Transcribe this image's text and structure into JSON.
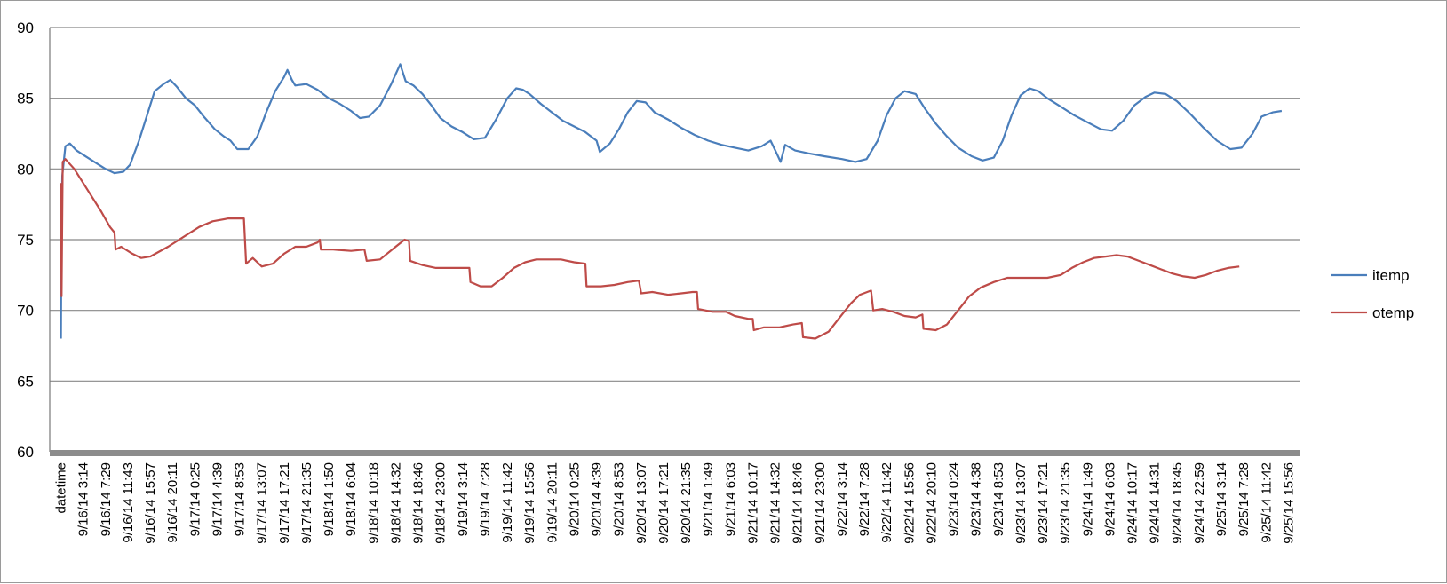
{
  "chart_data": {
    "type": "line",
    "title": "",
    "xlabel": "",
    "ylabel": "",
    "ylim": [
      60,
      90
    ],
    "yticks": [
      60,
      65,
      70,
      75,
      80,
      85,
      90
    ],
    "grid": "horizontal",
    "legend_position": "right",
    "categories": [
      "datetime",
      "9/16/14 3:14",
      "9/16/14 7:29",
      "9/16/14 11:43",
      "9/16/14 15:57",
      "9/16/14 20:11",
      "9/17/14 0:25",
      "9/17/14 4:39",
      "9/17/14 8:53",
      "9/17/14 13:07",
      "9/17/14 17:21",
      "9/17/14 21:35",
      "9/18/14 1:50",
      "9/18/14 6:04",
      "9/18/14 10:18",
      "9/18/14 14:32",
      "9/18/14 18:46",
      "9/18/14 23:00",
      "9/19/14 3:14",
      "9/19/14 7:28",
      "9/19/14 11:42",
      "9/19/14 15:56",
      "9/19/14 20:11",
      "9/20/14 0:25",
      "9/20/14 4:39",
      "9/20/14 8:53",
      "9/20/14 13:07",
      "9/20/14 17:21",
      "9/20/14 21:35",
      "9/21/14 1:49",
      "9/21/14 6:03",
      "9/21/14 10:17",
      "9/21/14 14:32",
      "9/21/14 18:46",
      "9/21/14 23:00",
      "9/22/14 3:14",
      "9/22/14 7:28",
      "9/22/14 11:42",
      "9/22/14 15:56",
      "9/22/14 20:10",
      "9/23/14 0:24",
      "9/23/14 4:38",
      "9/23/14 8:53",
      "9/23/14 13:07",
      "9/23/14 17:21",
      "9/23/14 21:35",
      "9/24/14 1:49",
      "9/24/14 6:03",
      "9/24/14 10:17",
      "9/24/14 14:31",
      "9/24/14 18:45",
      "9/24/14 22:59",
      "9/25/14 3:14",
      "9/25/14 7:28",
      "9/25/14 11:42",
      "9/25/14 15:56"
    ],
    "series": [
      {
        "name": "itemp",
        "color": "#4a7ebb",
        "points": [
          [
            0,
            68
          ],
          [
            0.02,
            75
          ],
          [
            0.06,
            79.5
          ],
          [
            0.2,
            81.6
          ],
          [
            0.4,
            81.8
          ],
          [
            0.7,
            81.3
          ],
          [
            1.0,
            81.0
          ],
          [
            1.5,
            80.5
          ],
          [
            2.0,
            80.0
          ],
          [
            2.4,
            79.7
          ],
          [
            2.8,
            79.8
          ],
          [
            3.1,
            80.3
          ],
          [
            3.5,
            82.0
          ],
          [
            3.9,
            84.0
          ],
          [
            4.2,
            85.5
          ],
          [
            4.6,
            86.0
          ],
          [
            4.9,
            86.3
          ],
          [
            5.2,
            85.8
          ],
          [
            5.6,
            85.0
          ],
          [
            6.0,
            84.5
          ],
          [
            6.4,
            83.7
          ],
          [
            6.9,
            82.8
          ],
          [
            7.3,
            82.3
          ],
          [
            7.6,
            82.0
          ],
          [
            7.9,
            81.4
          ],
          [
            8.4,
            81.4
          ],
          [
            8.8,
            82.3
          ],
          [
            9.2,
            84.0
          ],
          [
            9.6,
            85.5
          ],
          [
            10.0,
            86.5
          ],
          [
            10.15,
            87.0
          ],
          [
            10.35,
            86.3
          ],
          [
            10.5,
            85.9
          ],
          [
            11.0,
            86.0
          ],
          [
            11.5,
            85.6
          ],
          [
            12.0,
            85.0
          ],
          [
            12.5,
            84.6
          ],
          [
            13.0,
            84.1
          ],
          [
            13.4,
            83.6
          ],
          [
            13.8,
            83.7
          ],
          [
            14.3,
            84.5
          ],
          [
            14.8,
            86.0
          ],
          [
            15.2,
            87.4
          ],
          [
            15.45,
            86.2
          ],
          [
            15.8,
            85.9
          ],
          [
            16.2,
            85.3
          ],
          [
            16.6,
            84.5
          ],
          [
            17.0,
            83.6
          ],
          [
            17.5,
            83.0
          ],
          [
            18.0,
            82.6
          ],
          [
            18.5,
            82.1
          ],
          [
            19.0,
            82.2
          ],
          [
            19.5,
            83.5
          ],
          [
            20.0,
            85.0
          ],
          [
            20.4,
            85.7
          ],
          [
            20.7,
            85.6
          ],
          [
            21.0,
            85.3
          ],
          [
            21.5,
            84.6
          ],
          [
            22.0,
            84.0
          ],
          [
            22.5,
            83.4
          ],
          [
            23.0,
            83.0
          ],
          [
            23.5,
            82.6
          ],
          [
            24.0,
            82.0
          ],
          [
            24.15,
            81.2
          ],
          [
            24.6,
            81.8
          ],
          [
            25.0,
            82.8
          ],
          [
            25.4,
            84.0
          ],
          [
            25.8,
            84.8
          ],
          [
            26.2,
            84.7
          ],
          [
            26.6,
            84.0
          ],
          [
            27.2,
            83.5
          ],
          [
            27.8,
            82.9
          ],
          [
            28.4,
            82.4
          ],
          [
            29.0,
            82.0
          ],
          [
            29.6,
            81.7
          ],
          [
            30.2,
            81.5
          ],
          [
            30.8,
            81.3
          ],
          [
            31.4,
            81.6
          ],
          [
            31.8,
            82.0
          ],
          [
            32.1,
            81.0
          ],
          [
            32.25,
            80.5
          ],
          [
            32.45,
            81.7
          ],
          [
            32.9,
            81.3
          ],
          [
            33.5,
            81.1
          ],
          [
            34.2,
            80.9
          ],
          [
            35.0,
            80.7
          ],
          [
            35.6,
            80.5
          ],
          [
            36.1,
            80.7
          ],
          [
            36.6,
            82.0
          ],
          [
            37.0,
            83.8
          ],
          [
            37.4,
            85.0
          ],
          [
            37.8,
            85.5
          ],
          [
            38.3,
            85.3
          ],
          [
            38.7,
            84.3
          ],
          [
            39.2,
            83.2
          ],
          [
            39.7,
            82.3
          ],
          [
            40.2,
            81.5
          ],
          [
            40.8,
            80.9
          ],
          [
            41.3,
            80.6
          ],
          [
            41.8,
            80.8
          ],
          [
            42.2,
            82.0
          ],
          [
            42.6,
            83.8
          ],
          [
            43.0,
            85.2
          ],
          [
            43.4,
            85.7
          ],
          [
            43.8,
            85.5
          ],
          [
            44.2,
            85.0
          ],
          [
            44.8,
            84.4
          ],
          [
            45.4,
            83.8
          ],
          [
            46.0,
            83.3
          ],
          [
            46.6,
            82.8
          ],
          [
            47.1,
            82.7
          ],
          [
            47.6,
            83.4
          ],
          [
            48.1,
            84.5
          ],
          [
            48.6,
            85.1
          ],
          [
            49.0,
            85.4
          ],
          [
            49.5,
            85.3
          ],
          [
            50.0,
            84.8
          ],
          [
            50.6,
            83.9
          ],
          [
            51.2,
            82.9
          ],
          [
            51.8,
            82.0
          ],
          [
            52.4,
            81.4
          ],
          [
            52.9,
            81.5
          ],
          [
            53.4,
            82.5
          ],
          [
            53.8,
            83.7
          ],
          [
            54.3,
            84.0
          ],
          [
            54.7,
            84.1
          ]
        ]
      },
      {
        "name": "otemp",
        "color": "#be4b48",
        "points": [
          [
            0,
            79
          ],
          [
            0.03,
            71
          ],
          [
            0.08,
            80.5
          ],
          [
            0.2,
            80.7
          ],
          [
            0.6,
            80.0
          ],
          [
            1.2,
            78.5
          ],
          [
            1.8,
            77.0
          ],
          [
            2.2,
            75.9
          ],
          [
            2.4,
            75.5
          ],
          [
            2.45,
            74.3
          ],
          [
            2.7,
            74.5
          ],
          [
            3.2,
            74.0
          ],
          [
            3.6,
            73.7
          ],
          [
            4.0,
            73.8
          ],
          [
            4.8,
            74.5
          ],
          [
            5.6,
            75.3
          ],
          [
            6.2,
            75.9
          ],
          [
            6.8,
            76.3
          ],
          [
            7.5,
            76.5
          ],
          [
            8.2,
            76.5
          ],
          [
            8.3,
            73.3
          ],
          [
            8.6,
            73.7
          ],
          [
            9.0,
            73.1
          ],
          [
            9.5,
            73.3
          ],
          [
            10.0,
            74.0
          ],
          [
            10.5,
            74.5
          ],
          [
            11.0,
            74.5
          ],
          [
            11.5,
            74.8
          ],
          [
            11.6,
            75.0
          ],
          [
            11.65,
            74.3
          ],
          [
            12.2,
            74.3
          ],
          [
            13.0,
            74.2
          ],
          [
            13.6,
            74.3
          ],
          [
            13.7,
            73.5
          ],
          [
            14.3,
            73.6
          ],
          [
            15.0,
            74.5
          ],
          [
            15.4,
            75.0
          ],
          [
            15.6,
            74.9
          ],
          [
            15.65,
            73.5
          ],
          [
            16.2,
            73.2
          ],
          [
            16.8,
            73.0
          ],
          [
            17.5,
            73.0
          ],
          [
            18.3,
            73.0
          ],
          [
            18.35,
            72.0
          ],
          [
            18.8,
            71.7
          ],
          [
            19.3,
            71.7
          ],
          [
            19.8,
            72.3
          ],
          [
            20.3,
            73.0
          ],
          [
            20.8,
            73.4
          ],
          [
            21.3,
            73.6
          ],
          [
            21.8,
            73.6
          ],
          [
            22.4,
            73.6
          ],
          [
            23.0,
            73.4
          ],
          [
            23.5,
            73.3
          ],
          [
            23.55,
            71.7
          ],
          [
            24.2,
            71.7
          ],
          [
            24.8,
            71.8
          ],
          [
            25.4,
            72.0
          ],
          [
            25.9,
            72.1
          ],
          [
            26.0,
            71.2
          ],
          [
            26.5,
            71.3
          ],
          [
            27.2,
            71.1
          ],
          [
            27.8,
            71.2
          ],
          [
            28.3,
            71.3
          ],
          [
            28.5,
            71.3
          ],
          [
            28.55,
            70.1
          ],
          [
            29.2,
            69.9
          ],
          [
            29.8,
            69.9
          ],
          [
            30.2,
            69.6
          ],
          [
            30.8,
            69.4
          ],
          [
            31.0,
            69.4
          ],
          [
            31.05,
            68.6
          ],
          [
            31.5,
            68.8
          ],
          [
            32.2,
            68.8
          ],
          [
            32.8,
            69.0
          ],
          [
            33.2,
            69.1
          ],
          [
            33.25,
            68.1
          ],
          [
            33.8,
            68.0
          ],
          [
            34.4,
            68.5
          ],
          [
            34.9,
            69.5
          ],
          [
            35.4,
            70.5
          ],
          [
            35.8,
            71.1
          ],
          [
            36.3,
            71.4
          ],
          [
            36.4,
            70.0
          ],
          [
            36.8,
            70.1
          ],
          [
            37.3,
            69.9
          ],
          [
            37.8,
            69.6
          ],
          [
            38.3,
            69.5
          ],
          [
            38.6,
            69.7
          ],
          [
            38.65,
            68.7
          ],
          [
            39.2,
            68.6
          ],
          [
            39.7,
            69.0
          ],
          [
            40.2,
            70.0
          ],
          [
            40.7,
            71.0
          ],
          [
            41.2,
            71.6
          ],
          [
            41.8,
            72.0
          ],
          [
            42.4,
            72.3
          ],
          [
            43.0,
            72.3
          ],
          [
            43.6,
            72.3
          ],
          [
            44.2,
            72.3
          ],
          [
            44.8,
            72.5
          ],
          [
            45.3,
            73.0
          ],
          [
            45.8,
            73.4
          ],
          [
            46.3,
            73.7
          ],
          [
            46.8,
            73.8
          ],
          [
            47.3,
            73.9
          ],
          [
            47.8,
            73.8
          ],
          [
            48.3,
            73.5
          ],
          [
            48.8,
            73.2
          ],
          [
            49.3,
            72.9
          ],
          [
            49.8,
            72.6
          ],
          [
            50.3,
            72.4
          ],
          [
            50.8,
            72.3
          ],
          [
            51.3,
            72.5
          ],
          [
            51.8,
            72.8
          ],
          [
            52.3,
            73.0
          ],
          [
            52.8,
            73.1
          ]
        ]
      }
    ]
  }
}
